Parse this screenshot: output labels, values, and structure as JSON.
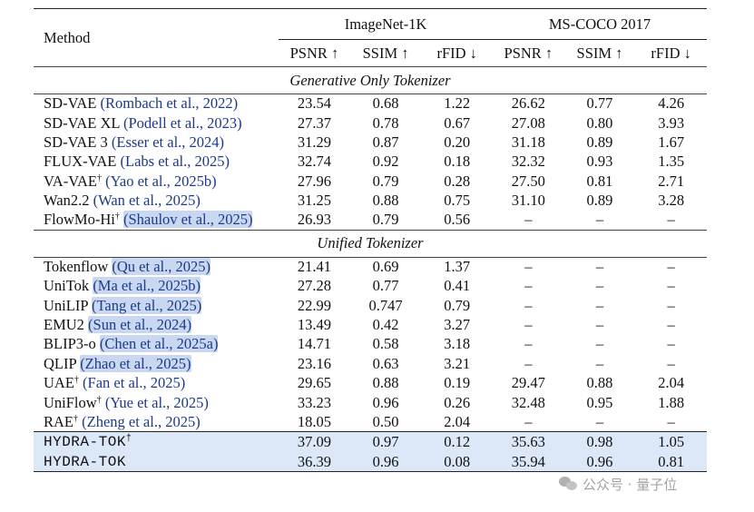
{
  "header": {
    "method": "Method",
    "groups": [
      "ImageNet-1K",
      "MS-COCO 2017"
    ],
    "metrics": [
      "PSNR ↑",
      "SSIM ↑",
      "rFID ↓",
      "PSNR ↑",
      "SSIM ↑",
      "rFID ↓"
    ]
  },
  "sections": [
    {
      "title": "Generative Only Tokenizer",
      "rows": [
        {
          "name": "SD-VAE",
          "sup": "",
          "cite": "(Rombach et al., 2022)",
          "values": [
            "23.54",
            "0.68",
            "1.22",
            "26.62",
            "0.77",
            "4.26"
          ]
        },
        {
          "name": "SD-VAE XL",
          "sup": "",
          "cite": "(Podell et al., 2023)",
          "values": [
            "27.37",
            "0.78",
            "0.67",
            "27.08",
            "0.80",
            "3.93"
          ]
        },
        {
          "name": "SD-VAE 3",
          "sup": "",
          "cite": "(Esser et al., 2024)",
          "values": [
            "31.29",
            "0.87",
            "0.20",
            "31.18",
            "0.89",
            "1.67"
          ]
        },
        {
          "name": "FLUX-VAE",
          "sup": "",
          "cite": "(Labs et al., 2025)",
          "values": [
            "32.74",
            "0.92",
            "0.18",
            "32.32",
            "0.93",
            "1.35"
          ]
        },
        {
          "name": "VA-VAE",
          "sup": "†",
          "cite": "(Yao et al., 2025b)",
          "values": [
            "27.96",
            "0.79",
            "0.28",
            "27.50",
            "0.81",
            "2.71"
          ]
        },
        {
          "name": "Wan2.2",
          "sup": "",
          "cite": "(Wan et al., 2025)",
          "values": [
            "31.25",
            "0.88",
            "0.75",
            "31.10",
            "0.89",
            "3.28"
          ]
        },
        {
          "name": "FlowMo-Hi",
          "sup": "†",
          "cite": "(Shaulov et al., 2025)",
          "values": [
            "26.93",
            "0.79",
            "0.56",
            "–",
            "–",
            "–"
          ]
        }
      ]
    },
    {
      "title": "Unified Tokenizer",
      "rows": [
        {
          "name": "Tokenflow",
          "sup": "",
          "cite": "(Qu et al., 2025)",
          "values": [
            "21.41",
            "0.69",
            "1.37",
            "–",
            "–",
            "–"
          ]
        },
        {
          "name": "UniTok",
          "sup": "",
          "cite": "(Ma et al., 2025b)",
          "values": [
            "27.28",
            "0.77",
            "0.41",
            "–",
            "–",
            "–"
          ]
        },
        {
          "name": "UniLIP",
          "sup": "",
          "cite": "(Tang et al., 2025)",
          "values": [
            "22.99",
            "0.747",
            "0.79",
            "–",
            "–",
            "–"
          ]
        },
        {
          "name": "EMU2",
          "sup": "",
          "cite": "(Sun et al., 2024)",
          "values": [
            "13.49",
            "0.42",
            "3.27",
            "–",
            "–",
            "–"
          ]
        },
        {
          "name": "BLIP3-o",
          "sup": "",
          "cite": "(Chen et al., 2025a)",
          "values": [
            "14.71",
            "0.58",
            "3.18",
            "–",
            "–",
            "–"
          ]
        },
        {
          "name": "QLIP",
          "sup": "",
          "cite": "(Zhao et al., 2025)",
          "values": [
            "23.16",
            "0.63",
            "3.21",
            "–",
            "–",
            "–"
          ]
        },
        {
          "name": "UAE",
          "sup": "†",
          "cite": "(Fan et al., 2025)",
          "values": [
            "29.65",
            "0.88",
            "0.19",
            "29.47",
            "0.88",
            "2.04"
          ]
        },
        {
          "name": "UniFlow",
          "sup": "†",
          "cite": "(Yue et al., 2025)",
          "values": [
            "33.23",
            "0.96",
            "0.26",
            "32.48",
            "0.95",
            "1.88"
          ]
        },
        {
          "name": "RAE",
          "sup": "†",
          "cite": "(Zheng et al., 2025)",
          "values": [
            "18.05",
            "0.50",
            "2.04",
            "–",
            "–",
            "–"
          ]
        }
      ]
    }
  ],
  "ours": [
    {
      "name": "HYDRA-TOK",
      "sup": "†",
      "values": [
        "37.09",
        "0.97",
        "0.12",
        "35.63",
        "0.98",
        "1.05"
      ]
    },
    {
      "name": "HYDRA-TOK",
      "sup": "",
      "values": [
        "36.39",
        "0.96",
        "0.08",
        "35.94",
        "0.96",
        "0.81"
      ]
    }
  ],
  "watermark": "公众号 · 量子位"
}
